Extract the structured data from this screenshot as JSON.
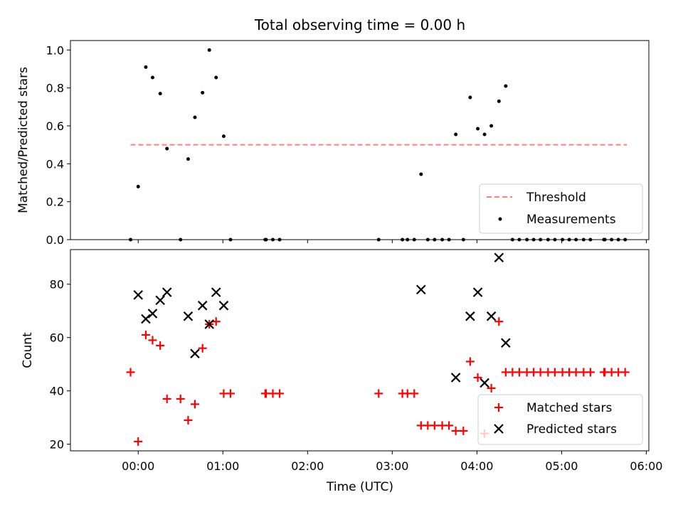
{
  "chart_data": [
    {
      "type": "scatter",
      "title": "Total observing time = 0.00 h",
      "xlabel": "",
      "ylabel": "Matched/Predicted stars",
      "xlim": [
        -0.8,
        6.03
      ],
      "ylim": [
        0,
        1.05
      ],
      "y_ticks": [
        0.0,
        0.2,
        0.4,
        0.6,
        0.8,
        1.0
      ],
      "y_tick_labels": [
        "0.0",
        "0.2",
        "0.4",
        "0.6",
        "0.8",
        "1.0"
      ],
      "x_ticks": [
        0,
        1,
        2,
        3,
        4,
        5,
        6
      ],
      "legend_position": "lower-right",
      "threshold": {
        "name": "Threshold",
        "value": 0.5,
        "x_range": [
          -0.09,
          5.77
        ],
        "color": "#ff7f7f",
        "style": "dashed"
      },
      "series": [
        {
          "name": "Measurements",
          "color": "#000000",
          "x": [
            -0.09,
            0.0,
            0.09,
            0.17,
            0.26,
            0.34,
            0.5,
            0.59,
            0.67,
            0.76,
            0.84,
            0.92,
            1.01,
            1.09,
            1.5,
            1.51,
            1.59,
            1.67,
            2.84,
            3.12,
            3.18,
            3.26,
            3.34,
            3.42,
            3.5,
            3.59,
            3.67,
            3.75,
            3.84,
            3.92,
            4.01,
            4.09,
            4.17,
            4.26,
            4.34,
            4.42,
            4.5,
            4.59,
            4.67,
            4.75,
            4.84,
            4.92,
            5.01,
            5.09,
            5.17,
            5.26,
            5.34,
            5.5,
            5.51,
            5.59,
            5.67,
            5.75
          ],
          "y": [
            0.0,
            0.28,
            0.91,
            0.855,
            0.77,
            0.48,
            0.0,
            0.425,
            0.645,
            0.775,
            1.0,
            0.855,
            0.545,
            0.0,
            0.0,
            0.0,
            0.0,
            0.0,
            0.0,
            0.0,
            0.0,
            0.0,
            0.345,
            0.0,
            0.0,
            0.0,
            0.0,
            0.555,
            0.0,
            0.75,
            0.585,
            0.555,
            0.6,
            0.73,
            0.81,
            0.0,
            0.0,
            0.0,
            0.0,
            0.0,
            0.0,
            0.0,
            0.0,
            0.0,
            0.0,
            0.0,
            0.0,
            0.0,
            0.0,
            0.0,
            0.0,
            0.0
          ]
        }
      ]
    },
    {
      "type": "scatter",
      "title": "",
      "xlabel": "Time (UTC)",
      "ylabel": "Count",
      "xlim": [
        -0.8,
        6.03
      ],
      "ylim": [
        17.5,
        93.0
      ],
      "y_ticks": [
        20,
        40,
        60,
        80
      ],
      "y_tick_labels": [
        "20",
        "40",
        "60",
        "80"
      ],
      "x_ticks": [
        0,
        1,
        2,
        3,
        4,
        5,
        6
      ],
      "x_tick_labels": [
        "00:00",
        "01:00",
        "02:00",
        "03:00",
        "04:00",
        "05:00",
        "06:00"
      ],
      "legend_position": "lower-right",
      "series": [
        {
          "name": "Matched stars",
          "color": "#ff0000",
          "marker": "plus",
          "x": [
            -0.09,
            0.0,
            0.09,
            0.17,
            0.26,
            0.34,
            0.5,
            0.59,
            0.67,
            0.76,
            0.84,
            0.92,
            1.01,
            1.09,
            1.5,
            1.51,
            1.59,
            1.67,
            2.84,
            3.12,
            3.18,
            3.26,
            3.34,
            3.42,
            3.5,
            3.59,
            3.67,
            3.75,
            3.84,
            3.92,
            4.01,
            4.09,
            4.17,
            4.26,
            4.34,
            4.42,
            4.5,
            4.59,
            4.67,
            4.75,
            4.84,
            4.92,
            5.01,
            5.09,
            5.17,
            5.26,
            5.34,
            5.5,
            5.51,
            5.59,
            5.67,
            5.75
          ],
          "y": [
            47,
            21,
            61,
            59,
            57,
            37,
            37,
            29,
            35,
            56,
            65,
            66,
            39,
            39,
            39,
            39,
            39,
            39,
            39,
            39,
            39,
            39,
            27,
            27,
            27,
            27,
            27,
            25,
            25,
            51,
            45,
            24,
            41,
            66,
            47,
            47,
            47,
            47,
            47,
            47,
            47,
            47,
            47,
            47,
            47,
            47,
            47,
            47,
            47,
            47,
            47,
            47
          ]
        },
        {
          "name": "Predicted stars",
          "color": "#000000",
          "marker": "x",
          "x": [
            0.0,
            0.09,
            0.17,
            0.26,
            0.34,
            0.59,
            0.67,
            0.76,
            0.84,
            0.92,
            1.01,
            3.34,
            3.75,
            3.92,
            4.01,
            4.09,
            4.17,
            4.26,
            4.34
          ],
          "y": [
            76,
            67,
            69,
            74,
            77,
            68,
            54,
            72,
            65,
            77,
            72,
            78,
            45,
            68,
            77,
            43,
            68,
            90,
            58
          ]
        }
      ]
    }
  ]
}
